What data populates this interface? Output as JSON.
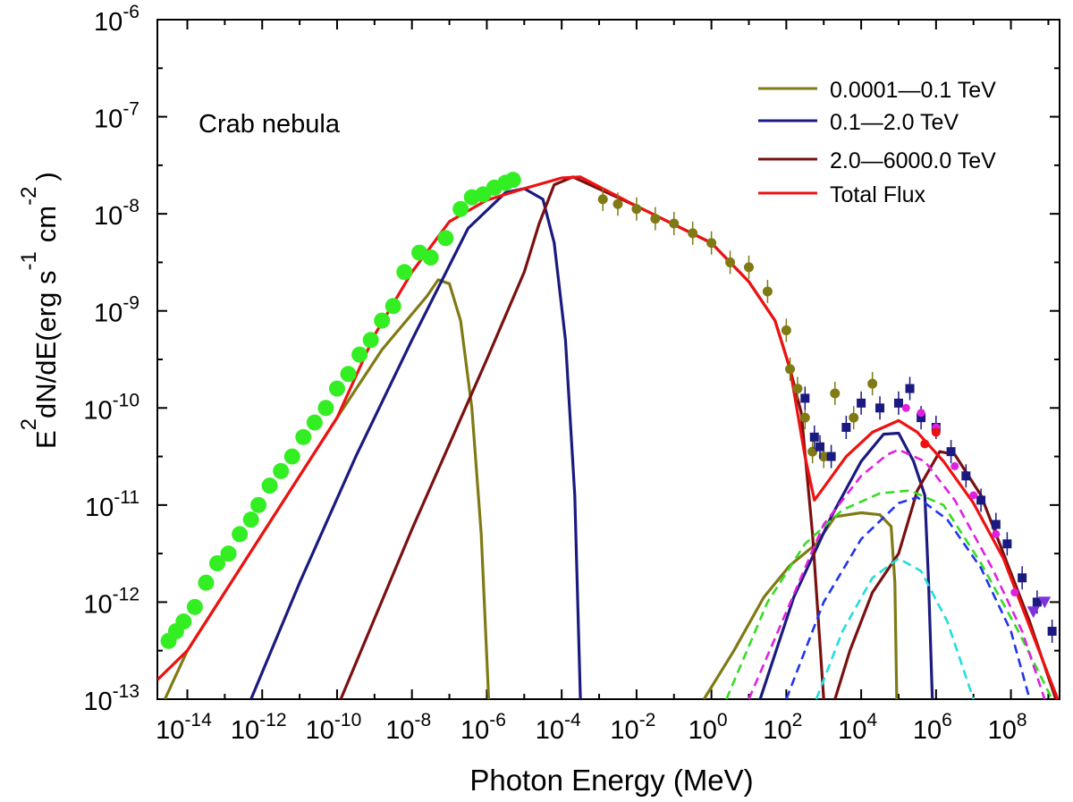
{
  "chart_data": {
    "type": "line",
    "title": "",
    "annotation": "Crab nebula",
    "xlabel": "Photon Energy (MeV)",
    "ylabel": {
      "base": "E",
      "sup1": "2",
      "main": "dN/dE(erg s",
      "sup2": "-1",
      "unit": "cm",
      "sup3": "-2",
      "close": ")"
    },
    "x_scale": "log10",
    "y_scale": "log10",
    "xlim": [
      -14.8,
      9.3
    ],
    "ylim": [
      -13,
      -6
    ],
    "x_ticks": [
      {
        "exp": -14,
        "base": "10",
        "sup": "-14"
      },
      {
        "exp": -12,
        "base": "10",
        "sup": "-12"
      },
      {
        "exp": -10,
        "base": "10",
        "sup": "-10"
      },
      {
        "exp": -8,
        "base": "10",
        "sup": "-8"
      },
      {
        "exp": -6,
        "base": "10",
        "sup": "-6"
      },
      {
        "exp": -4,
        "base": "10",
        "sup": "-4"
      },
      {
        "exp": -2,
        "base": "10",
        "sup": "-2"
      },
      {
        "exp": 0,
        "base": "10",
        "sup": "0"
      },
      {
        "exp": 2,
        "base": "10",
        "sup": "2"
      },
      {
        "exp": 4,
        "base": "10",
        "sup": "4"
      },
      {
        "exp": 6,
        "base": "10",
        "sup": "6"
      },
      {
        "exp": 8,
        "base": "10",
        "sup": "8"
      }
    ],
    "y_ticks": [
      {
        "exp": -13,
        "base": "10",
        "sup": "-13"
      },
      {
        "exp": -12,
        "base": "10",
        "sup": "-12"
      },
      {
        "exp": -11,
        "base": "10",
        "sup": "-11"
      },
      {
        "exp": -10,
        "base": "10",
        "sup": "-10"
      },
      {
        "exp": -9,
        "base": "10",
        "sup": "-9"
      },
      {
        "exp": -8,
        "base": "10",
        "sup": "-8"
      },
      {
        "exp": -7,
        "base": "10",
        "sup": "-7"
      },
      {
        "exp": -6,
        "base": "10",
        "sup": "-6"
      }
    ],
    "legend": {
      "position": "top-right",
      "entries": [
        {
          "label": "0.0001—0.1 TeV",
          "color": "#7f7a14"
        },
        {
          "label": "0.1—2.0 TeV",
          "color": "#1a1a80"
        },
        {
          "label": "2.0—6000.0 TeV",
          "color": "#7a1010"
        },
        {
          "label": "Total Flux",
          "color": "#ee1111"
        }
      ]
    },
    "series": [
      {
        "name": "0.0001—0.1 TeV",
        "color": "#7f7a14",
        "style": "solid",
        "points": [
          [
            -14.6,
            -13
          ],
          [
            -14,
            -12.5
          ],
          [
            -12,
            -11.3
          ],
          [
            -10,
            -10.1
          ],
          [
            -8.8,
            -9.4
          ],
          [
            -7.6,
            -8.85
          ],
          [
            -7.3,
            -8.68
          ],
          [
            -7.0,
            -8.72
          ],
          [
            -6.7,
            -9.1
          ],
          [
            -6.4,
            -10.0
          ],
          [
            -6.15,
            -11.3
          ],
          [
            -5.95,
            -13
          ]
        ]
      },
      {
        "name": "0.0001—0.1 TeV IC",
        "color": "#7f7a14",
        "style": "solid",
        "points": [
          [
            -0.2,
            -13
          ],
          [
            0.6,
            -12.5
          ],
          [
            1.4,
            -11.95
          ],
          [
            2.1,
            -11.62
          ],
          [
            2.8,
            -11.4
          ],
          [
            3.3,
            -11.12
          ],
          [
            4.0,
            -11.08
          ],
          [
            4.5,
            -11.1
          ],
          [
            4.8,
            -11.22
          ],
          [
            4.9,
            -11.8
          ],
          [
            4.95,
            -13
          ]
        ]
      },
      {
        "name": "0.1—2.0 TeV",
        "color": "#1a1a80",
        "style": "solid",
        "points": [
          [
            -12.3,
            -13
          ],
          [
            -11,
            -11.8
          ],
          [
            -9.5,
            -10.5
          ],
          [
            -8,
            -9.3
          ],
          [
            -6.5,
            -8.15
          ],
          [
            -5.5,
            -7.78
          ],
          [
            -5,
            -7.74
          ],
          [
            -4.5,
            -7.85
          ],
          [
            -4.2,
            -8.3
          ],
          [
            -3.9,
            -9.3
          ],
          [
            -3.65,
            -10.9
          ],
          [
            -3.5,
            -13
          ]
        ]
      },
      {
        "name": "0.1—2.0 TeV IC",
        "color": "#1a1a80",
        "style": "solid",
        "points": [
          [
            1.3,
            -13
          ],
          [
            2.2,
            -11.95
          ],
          [
            3.2,
            -11.12
          ],
          [
            4.0,
            -10.55
          ],
          [
            4.6,
            -10.27
          ],
          [
            5.0,
            -10.26
          ],
          [
            5.4,
            -10.55
          ],
          [
            5.7,
            -10.9
          ],
          [
            5.8,
            -11.8
          ],
          [
            5.9,
            -13
          ]
        ]
      },
      {
        "name": "2.0—6000.0 TeV",
        "color": "#7a1010",
        "style": "solid",
        "points": [
          [
            -9.9,
            -13
          ],
          [
            -8,
            -11.25
          ],
          [
            -6,
            -9.5
          ],
          [
            -5,
            -8.6
          ],
          [
            -4.6,
            -8.1
          ],
          [
            -4.2,
            -7.7
          ],
          [
            -3.7,
            -7.62
          ],
          [
            -2,
            -7.92
          ],
          [
            0,
            -8.3
          ],
          [
            1,
            -8.7
          ],
          [
            1.7,
            -9.1
          ],
          [
            2.1,
            -9.6
          ],
          [
            2.4,
            -10.05
          ],
          [
            2.7,
            -11.3
          ],
          [
            3.0,
            -13
          ]
        ]
      },
      {
        "name": "2.0—6000.0 TeV IC",
        "color": "#7a1010",
        "style": "solid",
        "points": [
          [
            3.3,
            -13
          ],
          [
            3.7,
            -12.5
          ],
          [
            4.3,
            -11.9
          ],
          [
            5.0,
            -11.5
          ],
          [
            5.5,
            -10.85
          ],
          [
            6.1,
            -10.45
          ],
          [
            6.5,
            -10.48
          ],
          [
            7.2,
            -10.9
          ],
          [
            7.8,
            -11.5
          ],
          [
            8.5,
            -12.2
          ],
          [
            9.2,
            -13
          ]
        ]
      },
      {
        "name": "Total Flux",
        "color": "#ee1111",
        "style": "solid",
        "points": [
          [
            -14.8,
            -12.8
          ],
          [
            -14,
            -12.5
          ],
          [
            -12,
            -11.3
          ],
          [
            -10,
            -10.1
          ],
          [
            -9,
            -9.25
          ],
          [
            -8,
            -8.6
          ],
          [
            -7,
            -8.08
          ],
          [
            -6,
            -7.86
          ],
          [
            -5,
            -7.74
          ],
          [
            -4,
            -7.63
          ],
          [
            -3.5,
            -7.62
          ],
          [
            -2,
            -7.92
          ],
          [
            0,
            -8.3
          ],
          [
            1,
            -8.7
          ],
          [
            1.7,
            -9.1
          ],
          [
            2.1,
            -9.6
          ],
          [
            2.5,
            -10.5
          ],
          [
            2.75,
            -10.95
          ],
          [
            3.0,
            -10.82
          ],
          [
            3.6,
            -10.5
          ],
          [
            4.3,
            -10.25
          ],
          [
            5.0,
            -10.13
          ],
          [
            5.5,
            -10.25
          ],
          [
            6.2,
            -10.55
          ],
          [
            7.0,
            -10.98
          ],
          [
            7.8,
            -11.55
          ],
          [
            8.5,
            -12.25
          ],
          [
            9.25,
            -13
          ]
        ]
      },
      {
        "name": "green dashed",
        "color": "#33dd22",
        "style": "dashed",
        "points": [
          [
            0.4,
            -13
          ],
          [
            1.5,
            -12.0
          ],
          [
            2.5,
            -11.4
          ],
          [
            3.5,
            -11.05
          ],
          [
            4.5,
            -10.88
          ],
          [
            5.3,
            -10.85
          ],
          [
            6.2,
            -11.0
          ],
          [
            7.2,
            -11.6
          ],
          [
            8.2,
            -12.3
          ],
          [
            9.1,
            -13
          ]
        ]
      },
      {
        "name": "magenta dashed",
        "color": "#e020e0",
        "style": "dashed",
        "points": [
          [
            1.0,
            -13
          ],
          [
            2.0,
            -12.1
          ],
          [
            3.0,
            -11.2
          ],
          [
            4.0,
            -10.7
          ],
          [
            4.7,
            -10.48
          ],
          [
            5.0,
            -10.43
          ],
          [
            5.7,
            -10.55
          ],
          [
            6.5,
            -10.95
          ],
          [
            7.5,
            -11.65
          ],
          [
            8.3,
            -12.3
          ],
          [
            8.9,
            -13
          ]
        ]
      },
      {
        "name": "blue dashed",
        "color": "#2233ee",
        "style": "dashed",
        "points": [
          [
            2.0,
            -13
          ],
          [
            3.0,
            -12.0
          ],
          [
            4.0,
            -11.35
          ],
          [
            5.0,
            -10.98
          ],
          [
            5.5,
            -10.92
          ],
          [
            6.3,
            -11.15
          ],
          [
            7.2,
            -11.65
          ],
          [
            8.0,
            -12.3
          ],
          [
            8.5,
            -13
          ]
        ]
      },
      {
        "name": "cyan dashed",
        "color": "#22dddd",
        "style": "dashed",
        "points": [
          [
            2.8,
            -13
          ],
          [
            3.5,
            -12.3
          ],
          [
            4.3,
            -11.75
          ],
          [
            5.0,
            -11.55
          ],
          [
            5.6,
            -11.68
          ],
          [
            6.3,
            -12.2
          ],
          [
            7.0,
            -13
          ]
        ]
      }
    ],
    "scatter": {
      "green_points": [
        [
          -14.5,
          -12.4
        ],
        [
          -14.3,
          -12.3
        ],
        [
          -14.1,
          -12.2
        ],
        [
          -13.8,
          -12.05
        ],
        [
          -13.5,
          -11.8
        ],
        [
          -13.2,
          -11.6
        ],
        [
          -12.9,
          -11.5
        ],
        [
          -12.6,
          -11.3
        ],
        [
          -12.3,
          -11.15
        ],
        [
          -12.1,
          -11.0
        ],
        [
          -11.8,
          -10.8
        ],
        [
          -11.5,
          -10.65
        ],
        [
          -11.2,
          -10.5
        ],
        [
          -10.9,
          -10.3
        ],
        [
          -10.6,
          -10.15
        ],
        [
          -10.3,
          -10.0
        ],
        [
          -10.0,
          -9.8
        ],
        [
          -9.7,
          -9.65
        ],
        [
          -9.4,
          -9.45
        ],
        [
          -9.1,
          -9.3
        ],
        [
          -8.8,
          -9.1
        ],
        [
          -8.5,
          -8.95
        ],
        [
          -8.2,
          -8.6
        ],
        [
          -7.8,
          -8.4
        ],
        [
          -7.5,
          -8.45
        ],
        [
          -7.1,
          -8.25
        ],
        [
          -6.7,
          -7.95
        ],
        [
          -6.4,
          -7.83
        ],
        [
          -6.1,
          -7.8
        ],
        [
          -5.8,
          -7.73
        ],
        [
          -5.5,
          -7.68
        ],
        [
          -5.3,
          -7.65
        ]
      ],
      "olive_points": [
        [
          -2.9,
          -7.85
        ],
        [
          -2.5,
          -7.9
        ],
        [
          -2.0,
          -7.95
        ],
        [
          -1.5,
          -8.05
        ],
        [
          -1.0,
          -8.1
        ],
        [
          -0.5,
          -8.2
        ],
        [
          0,
          -8.3
        ],
        [
          0.5,
          -8.5
        ],
        [
          1.0,
          -8.55
        ],
        [
          1.5,
          -8.8
        ],
        [
          2.0,
          -9.2
        ],
        [
          2.1,
          -9.6
        ],
        [
          2.3,
          -9.8
        ],
        [
          2.5,
          -10.1
        ],
        [
          2.7,
          -10.45
        ],
        [
          3.0,
          -10.5
        ],
        [
          3.3,
          -9.85
        ],
        [
          3.8,
          -10.1
        ],
        [
          4.3,
          -9.75
        ]
      ],
      "blue_points": [
        [
          2.5,
          -9.9
        ],
        [
          2.75,
          -10.3
        ],
        [
          2.9,
          -10.4
        ],
        [
          3.2,
          -10.5
        ],
        [
          3.6,
          -10.2
        ],
        [
          4.0,
          -9.95
        ],
        [
          4.5,
          -10.0
        ],
        [
          5.0,
          -9.95
        ],
        [
          5.3,
          -9.8
        ],
        [
          5.6,
          -10.1
        ],
        [
          6.0,
          -10.2
        ],
        [
          6.4,
          -10.45
        ],
        [
          6.8,
          -10.7
        ],
        [
          7.2,
          -10.95
        ],
        [
          7.6,
          -11.2
        ],
        [
          7.9,
          -11.4
        ],
        [
          8.3,
          -11.75
        ],
        [
          8.7,
          -12.0
        ],
        [
          9.1,
          -12.3
        ]
      ],
      "magenta_points": [
        [
          5.2,
          -10.0
        ],
        [
          5.6,
          -10.05
        ],
        [
          6.0,
          -10.2
        ],
        [
          6.5,
          -10.6
        ],
        [
          7.0,
          -10.9
        ],
        [
          7.6,
          -11.3
        ],
        [
          8.1,
          -11.9
        ]
      ],
      "red_points": [
        [
          5.7,
          -10.37
        ],
        [
          6.0,
          -10.25
        ]
      ],
      "purple_points": [
        [
          8.6,
          -12.1
        ],
        [
          8.9,
          -12.0
        ]
      ]
    }
  }
}
